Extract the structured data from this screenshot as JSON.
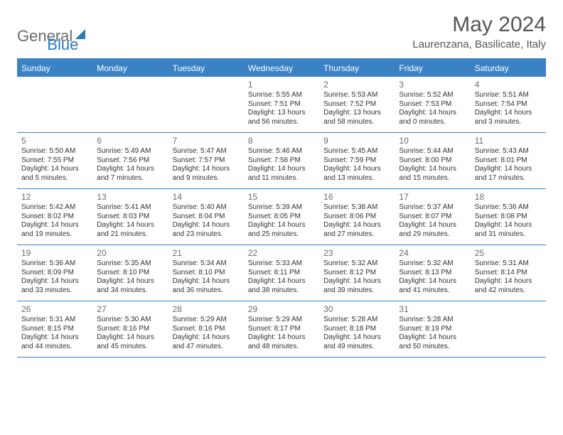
{
  "logo": {
    "text1": "General",
    "text2": "Blue"
  },
  "title": "May 2024",
  "location": "Laurenzana, Basilicate, Italy",
  "header_bg": "#3b82c4",
  "header_text_color": "#ffffff",
  "rule_color": "#3b82c4",
  "weekdays": [
    "Sunday",
    "Monday",
    "Tuesday",
    "Wednesday",
    "Thursday",
    "Friday",
    "Saturday"
  ],
  "weeks": [
    [
      null,
      null,
      null,
      {
        "n": "1",
        "sr": "5:55 AM",
        "ss": "7:51 PM",
        "dl": "13 hours and 56 minutes."
      },
      {
        "n": "2",
        "sr": "5:53 AM",
        "ss": "7:52 PM",
        "dl": "13 hours and 58 minutes."
      },
      {
        "n": "3",
        "sr": "5:52 AM",
        "ss": "7:53 PM",
        "dl": "14 hours and 0 minutes."
      },
      {
        "n": "4",
        "sr": "5:51 AM",
        "ss": "7:54 PM",
        "dl": "14 hours and 3 minutes."
      }
    ],
    [
      {
        "n": "5",
        "sr": "5:50 AM",
        "ss": "7:55 PM",
        "dl": "14 hours and 5 minutes."
      },
      {
        "n": "6",
        "sr": "5:49 AM",
        "ss": "7:56 PM",
        "dl": "14 hours and 7 minutes."
      },
      {
        "n": "7",
        "sr": "5:47 AM",
        "ss": "7:57 PM",
        "dl": "14 hours and 9 minutes."
      },
      {
        "n": "8",
        "sr": "5:46 AM",
        "ss": "7:58 PM",
        "dl": "14 hours and 11 minutes."
      },
      {
        "n": "9",
        "sr": "5:45 AM",
        "ss": "7:59 PM",
        "dl": "14 hours and 13 minutes."
      },
      {
        "n": "10",
        "sr": "5:44 AM",
        "ss": "8:00 PM",
        "dl": "14 hours and 15 minutes."
      },
      {
        "n": "11",
        "sr": "5:43 AM",
        "ss": "8:01 PM",
        "dl": "14 hours and 17 minutes."
      }
    ],
    [
      {
        "n": "12",
        "sr": "5:42 AM",
        "ss": "8:02 PM",
        "dl": "14 hours and 19 minutes."
      },
      {
        "n": "13",
        "sr": "5:41 AM",
        "ss": "8:03 PM",
        "dl": "14 hours and 21 minutes."
      },
      {
        "n": "14",
        "sr": "5:40 AM",
        "ss": "8:04 PM",
        "dl": "14 hours and 23 minutes."
      },
      {
        "n": "15",
        "sr": "5:39 AM",
        "ss": "8:05 PM",
        "dl": "14 hours and 25 minutes."
      },
      {
        "n": "16",
        "sr": "5:38 AM",
        "ss": "8:06 PM",
        "dl": "14 hours and 27 minutes."
      },
      {
        "n": "17",
        "sr": "5:37 AM",
        "ss": "8:07 PM",
        "dl": "14 hours and 29 minutes."
      },
      {
        "n": "18",
        "sr": "5:36 AM",
        "ss": "8:08 PM",
        "dl": "14 hours and 31 minutes."
      }
    ],
    [
      {
        "n": "19",
        "sr": "5:36 AM",
        "ss": "8:09 PM",
        "dl": "14 hours and 33 minutes."
      },
      {
        "n": "20",
        "sr": "5:35 AM",
        "ss": "8:10 PM",
        "dl": "14 hours and 34 minutes."
      },
      {
        "n": "21",
        "sr": "5:34 AM",
        "ss": "8:10 PM",
        "dl": "14 hours and 36 minutes."
      },
      {
        "n": "22",
        "sr": "5:33 AM",
        "ss": "8:11 PM",
        "dl": "14 hours and 38 minutes."
      },
      {
        "n": "23",
        "sr": "5:32 AM",
        "ss": "8:12 PM",
        "dl": "14 hours and 39 minutes."
      },
      {
        "n": "24",
        "sr": "5:32 AM",
        "ss": "8:13 PM",
        "dl": "14 hours and 41 minutes."
      },
      {
        "n": "25",
        "sr": "5:31 AM",
        "ss": "8:14 PM",
        "dl": "14 hours and 42 minutes."
      }
    ],
    [
      {
        "n": "26",
        "sr": "5:31 AM",
        "ss": "8:15 PM",
        "dl": "14 hours and 44 minutes."
      },
      {
        "n": "27",
        "sr": "5:30 AM",
        "ss": "8:16 PM",
        "dl": "14 hours and 45 minutes."
      },
      {
        "n": "28",
        "sr": "5:29 AM",
        "ss": "8:16 PM",
        "dl": "14 hours and 47 minutes."
      },
      {
        "n": "29",
        "sr": "5:29 AM",
        "ss": "8:17 PM",
        "dl": "14 hours and 48 minutes."
      },
      {
        "n": "30",
        "sr": "5:28 AM",
        "ss": "8:18 PM",
        "dl": "14 hours and 49 minutes."
      },
      {
        "n": "31",
        "sr": "5:28 AM",
        "ss": "8:19 PM",
        "dl": "14 hours and 50 minutes."
      },
      null
    ]
  ],
  "labels": {
    "sunrise": "Sunrise: ",
    "sunset": "Sunset: ",
    "daylight": "Daylight: "
  }
}
